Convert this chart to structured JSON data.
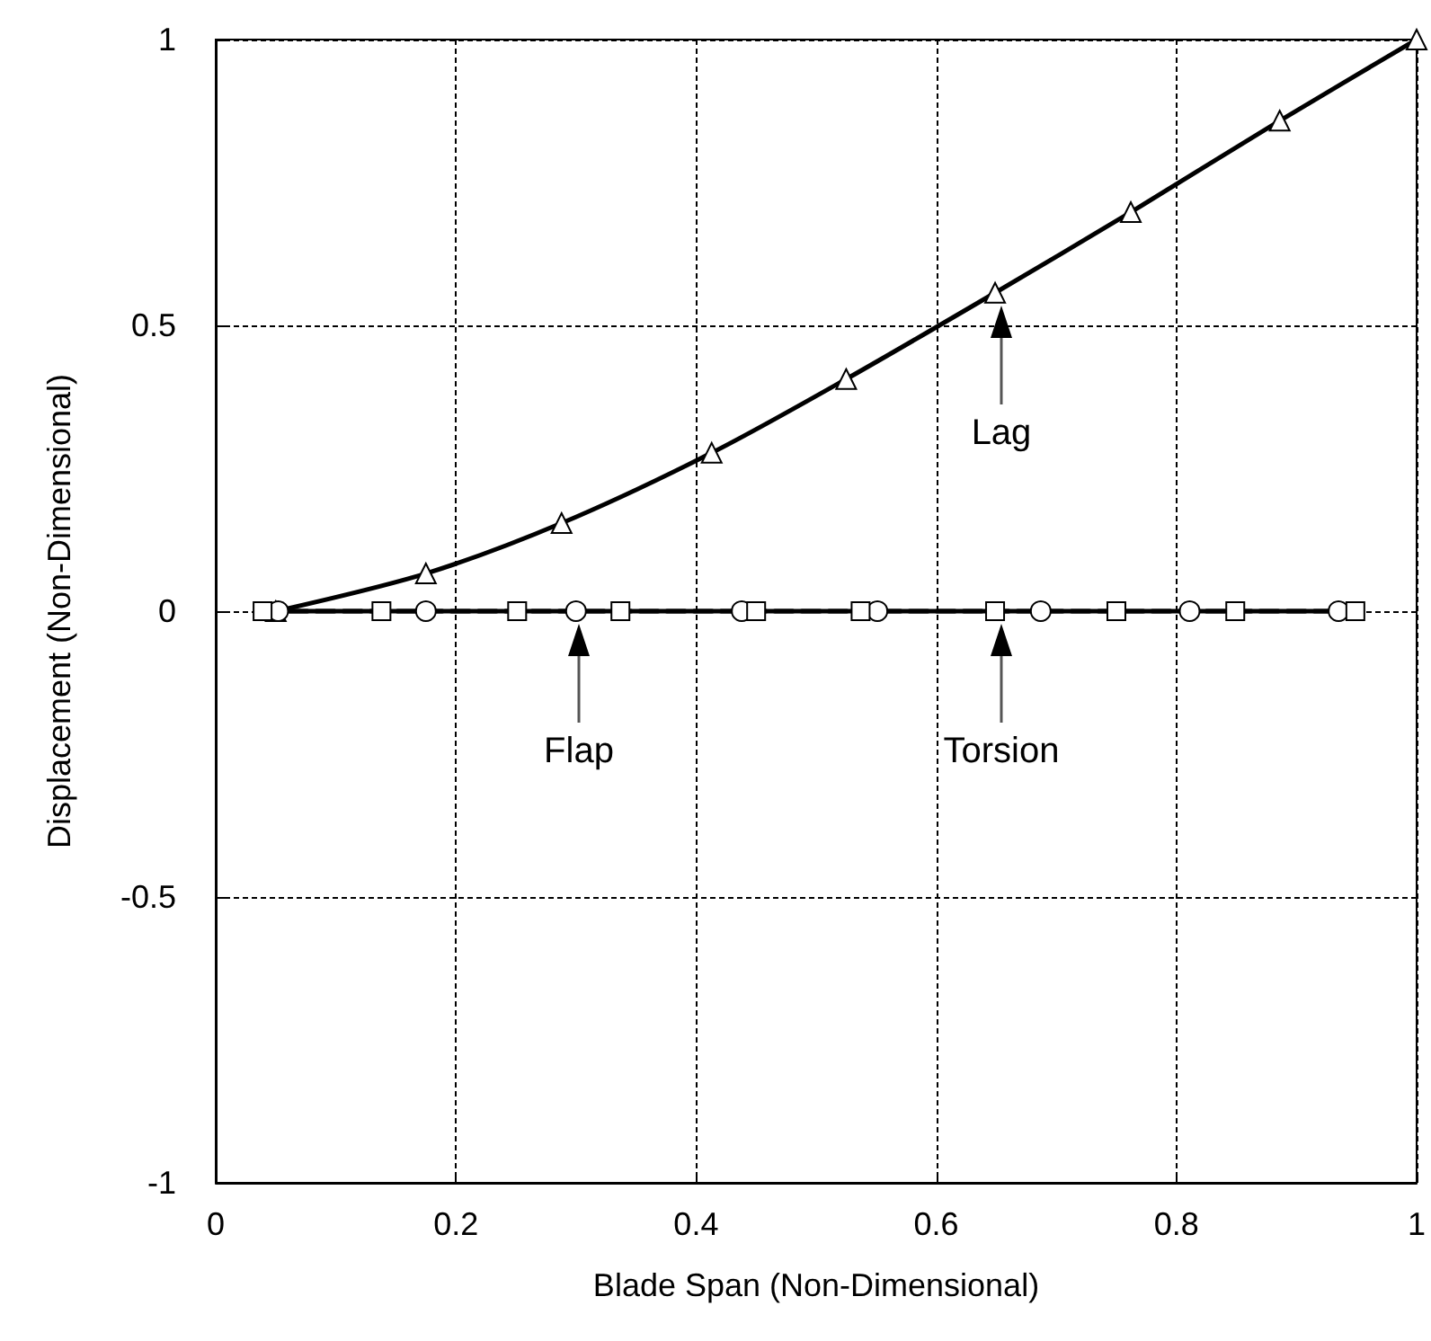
{
  "chart_data": {
    "type": "line",
    "xlabel": "Blade Span (Non-Dimensional)",
    "ylabel": "Displacement (Non-Dimensional)",
    "xlim": [
      0,
      1
    ],
    "xticks": [
      0,
      0.2,
      0.4,
      0.6,
      0.8,
      1
    ],
    "ylim": [
      -1,
      1
    ],
    "yticks": [
      -1,
      -0.5,
      0,
      0.5,
      1
    ],
    "grid": true,
    "series": [
      {
        "color": "#000000",
        "marker": "triangle",
        "line_style": "solid",
        "x": [
          0.05,
          0.175,
          0.288,
          0.413,
          0.525,
          0.649,
          0.762,
          0.886,
          1
        ],
        "values": [
          0,
          0.066,
          0.154,
          0.277,
          0.406,
          0.557,
          0.698,
          0.858,
          1
        ]
      },
      {
        "color": "#000000",
        "marker": "circle",
        "line_style": "solid",
        "x": [
          0.052,
          0.175,
          0.3,
          0.438,
          0.551,
          0.687,
          0.811,
          0.935
        ],
        "values": [
          0,
          0,
          0,
          0,
          0,
          0,
          0,
          0
        ]
      },
      {
        "color": "#000000",
        "marker": "square",
        "line_style": "dashed",
        "x": [
          0.039,
          0.138,
          0.251,
          0.337,
          0.45,
          0.537,
          0.649,
          0.75,
          0.849,
          0.949
        ],
        "values": [
          0,
          0,
          0,
          0,
          0,
          0,
          0,
          0,
          0,
          0
        ]
      }
    ],
    "annotations": [
      "Lag",
      "Flap",
      "Torsion"
    ]
  }
}
